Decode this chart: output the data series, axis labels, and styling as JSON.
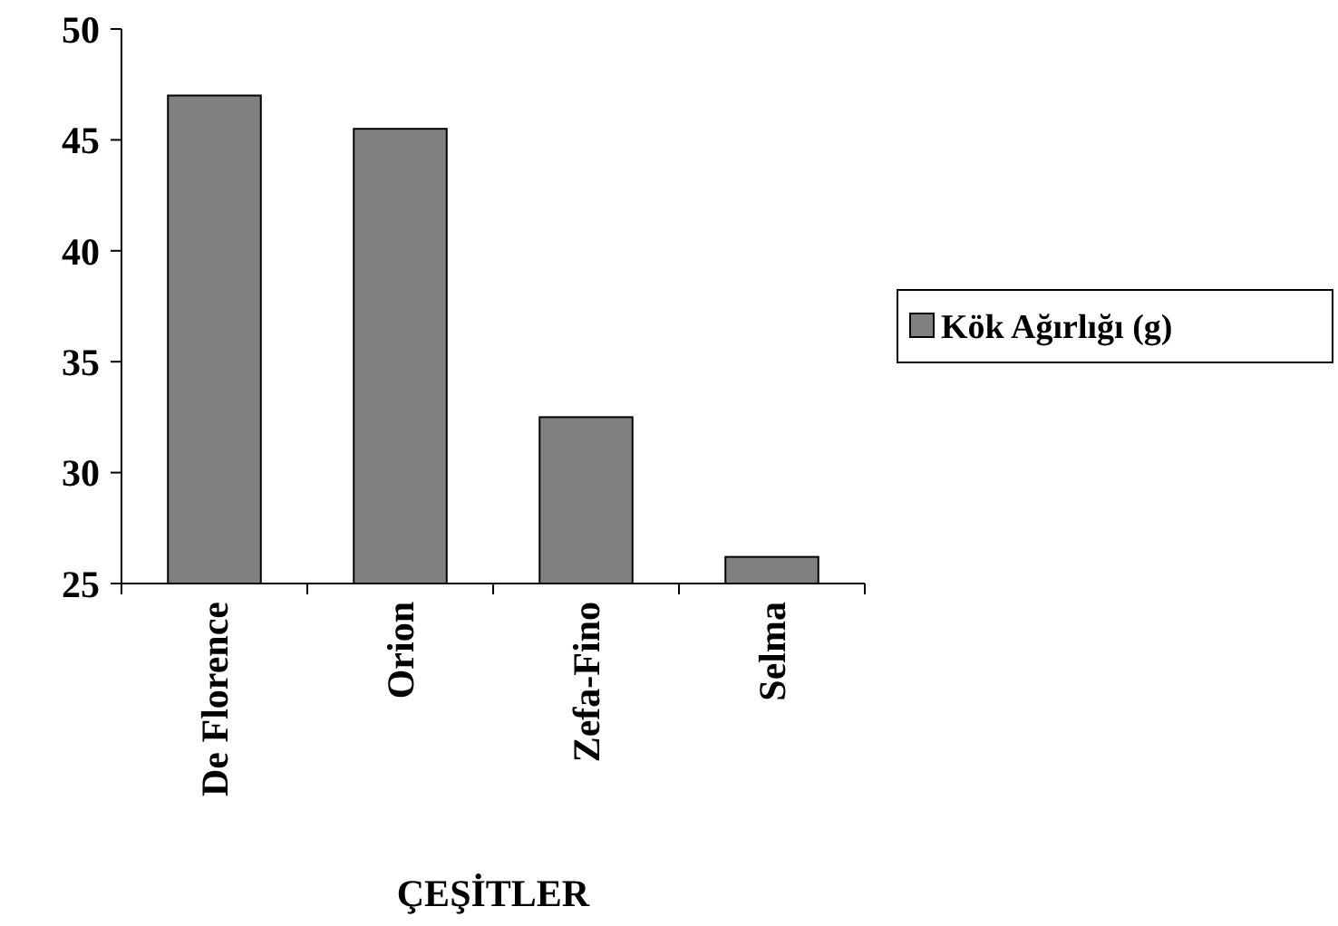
{
  "chart_data": {
    "type": "bar",
    "xlabel": "ÇEŞİTLER",
    "categories": [
      "De Florence",
      "Orion",
      "Zefa-Fino",
      "Selma"
    ],
    "series": [
      {
        "name": "Kök Ağırlığı (g)",
        "color": "#808080",
        "values": [
          47,
          45.5,
          32.5,
          26.2
        ]
      }
    ],
    "ylim": [
      25,
      50
    ],
    "yticks": [
      25,
      30,
      35,
      40,
      45,
      50
    ],
    "grid": false,
    "legend": "right"
  }
}
